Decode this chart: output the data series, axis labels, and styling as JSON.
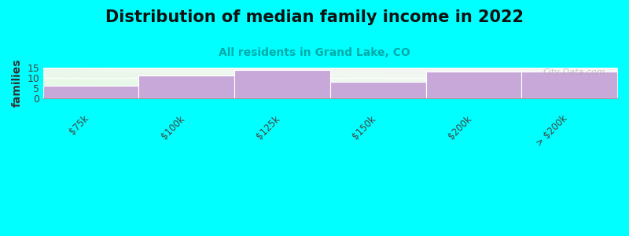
{
  "title": "Distribution of median family income in 2022",
  "subtitle": "All residents in Grand Lake, CO",
  "ylabel": "families",
  "background_color": "#00FFFF",
  "bar_color": "#c8a8d8",
  "categories": [
    "$75k",
    "$100k",
    "$125k",
    "$150k",
    "$200k",
    "> $200k"
  ],
  "values": [
    6,
    11,
    14,
    8,
    13,
    13
  ],
  "ylim": [
    0,
    15
  ],
  "yticks": [
    0,
    5,
    10,
    15
  ],
  "watermark": "City-Data.com",
  "title_fontsize": 15,
  "subtitle_fontsize": 10,
  "subtitle_color": "#00AAAA",
  "ylabel_fontsize": 10
}
